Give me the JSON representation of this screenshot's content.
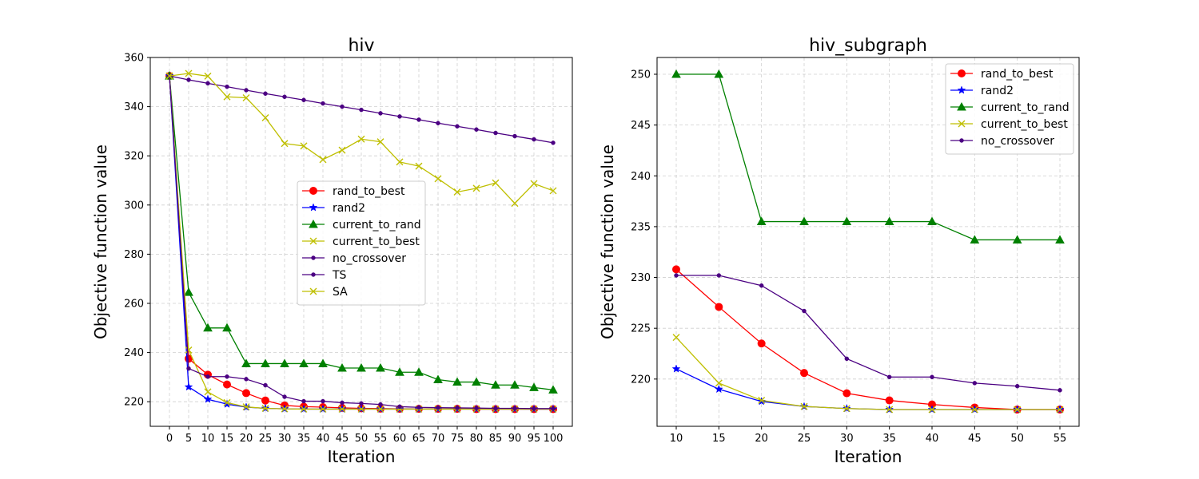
{
  "chart_data": [
    {
      "type": "line",
      "title": "hiv",
      "xlabel": "Iteration",
      "ylabel": "Objective function value",
      "xlim": [
        -5,
        105
      ],
      "ylim": [
        210,
        360
      ],
      "xticks": [
        0,
        5,
        10,
        15,
        20,
        25,
        30,
        35,
        40,
        45,
        50,
        55,
        60,
        65,
        70,
        75,
        80,
        85,
        90,
        95,
        100
      ],
      "yticks": [
        220,
        240,
        260,
        280,
        300,
        320,
        340,
        360
      ],
      "grid": true,
      "legend_position": "center-right",
      "x": [
        0,
        5,
        10,
        15,
        20,
        25,
        30,
        35,
        40,
        45,
        50,
        55,
        60,
        65,
        70,
        75,
        80,
        85,
        90,
        95,
        100
      ],
      "series": [
        {
          "name": "rand_to_best",
          "color": "#ff0000",
          "marker": "circle",
          "values": [
            352.5,
            237.5,
            231,
            227,
            223.5,
            220.5,
            218.5,
            218,
            217.8,
            217.5,
            217.3,
            217.2,
            217.1,
            217.1,
            217.1,
            217.1,
            217,
            217,
            217,
            217,
            217
          ]
        },
        {
          "name": "rand2",
          "color": "#0000ff",
          "marker": "star",
          "values": [
            352.5,
            226,
            221,
            219,
            217.8,
            217.3,
            217.1,
            217,
            217,
            217,
            217,
            217,
            217,
            217,
            217,
            217,
            217,
            217,
            217,
            217,
            217
          ]
        },
        {
          "name": "current_to_rand",
          "color": "#008000",
          "marker": "triangle",
          "values": [
            352.5,
            264.5,
            250,
            250,
            235.5,
            235.5,
            235.5,
            235.5,
            235.5,
            233.7,
            233.7,
            233.7,
            232,
            232,
            229,
            228,
            228,
            226.8,
            226.8,
            225.8,
            224.8
          ]
        },
        {
          "name": "current_to_best",
          "color": "#bfbf00",
          "marker": "x",
          "values": [
            352.5,
            241,
            224,
            219.6,
            217.9,
            217.3,
            217.1,
            217,
            217,
            217,
            217,
            217,
            217,
            217,
            217,
            217,
            217,
            217,
            217,
            217,
            217
          ]
        },
        {
          "name": "no_crossover",
          "color": "#4b0082",
          "marker": "dot",
          "values": [
            352.5,
            233.5,
            230.2,
            230.2,
            229.2,
            226.7,
            222,
            220.2,
            220.2,
            219.6,
            219.3,
            218.9,
            218,
            217.7,
            217.6,
            217.5,
            217.4,
            217.3,
            217.3,
            217.2,
            217.2
          ]
        },
        {
          "name": "TS",
          "color": "#4b0082",
          "marker": "dot",
          "values": [
            352.5,
            350.9,
            349.5,
            348.1,
            346.7,
            345.3,
            344,
            342.7,
            341.3,
            340,
            338.7,
            337.3,
            336,
            334.7,
            333.3,
            332,
            330.7,
            329.3,
            328,
            326.7,
            325.3
          ]
        },
        {
          "name": "SA",
          "color": "#bfbf00",
          "marker": "x",
          "values": [
            352.5,
            353.5,
            352.4,
            344,
            343.6,
            335.5,
            325,
            324,
            318.5,
            322.3,
            326.8,
            325.7,
            317.5,
            315.8,
            310.7,
            305.3,
            306.8,
            309,
            300.7,
            308.7,
            305.8
          ]
        }
      ]
    },
    {
      "type": "line",
      "title": "hiv_subgraph",
      "xlabel": "Iteration",
      "ylabel": "Objective function value",
      "xlim": [
        7.75,
        57.25
      ],
      "ylim": [
        215.35,
        251.65
      ],
      "xticks": [
        10,
        15,
        20,
        25,
        30,
        35,
        40,
        45,
        50,
        55
      ],
      "yticks": [
        220,
        225,
        230,
        235,
        240,
        245,
        250
      ],
      "grid": true,
      "legend_position": "top-right",
      "x": [
        10,
        15,
        20,
        25,
        30,
        35,
        40,
        45,
        50,
        55
      ],
      "series": [
        {
          "name": "rand_to_best",
          "color": "#ff0000",
          "marker": "circle",
          "values": [
            230.8,
            227.1,
            223.5,
            220.6,
            218.6,
            217.9,
            217.5,
            217.2,
            217,
            217
          ]
        },
        {
          "name": "rand2",
          "color": "#0000ff",
          "marker": "star",
          "values": [
            221,
            219,
            217.8,
            217.3,
            217.1,
            217,
            217,
            217,
            217,
            217
          ]
        },
        {
          "name": "current_to_rand",
          "color": "#008000",
          "marker": "triangle",
          "values": [
            250,
            250,
            235.5,
            235.5,
            235.5,
            235.5,
            235.5,
            233.7,
            233.7,
            233.7
          ]
        },
        {
          "name": "current_to_best",
          "color": "#bfbf00",
          "marker": "x",
          "values": [
            224.1,
            219.6,
            217.9,
            217.3,
            217.1,
            217,
            217,
            217,
            217,
            217
          ]
        },
        {
          "name": "no_crossover",
          "color": "#4b0082",
          "marker": "dot",
          "values": [
            230.2,
            230.2,
            229.2,
            226.7,
            222,
            220.2,
            220.2,
            219.6,
            219.3,
            218.9
          ]
        }
      ]
    }
  ]
}
